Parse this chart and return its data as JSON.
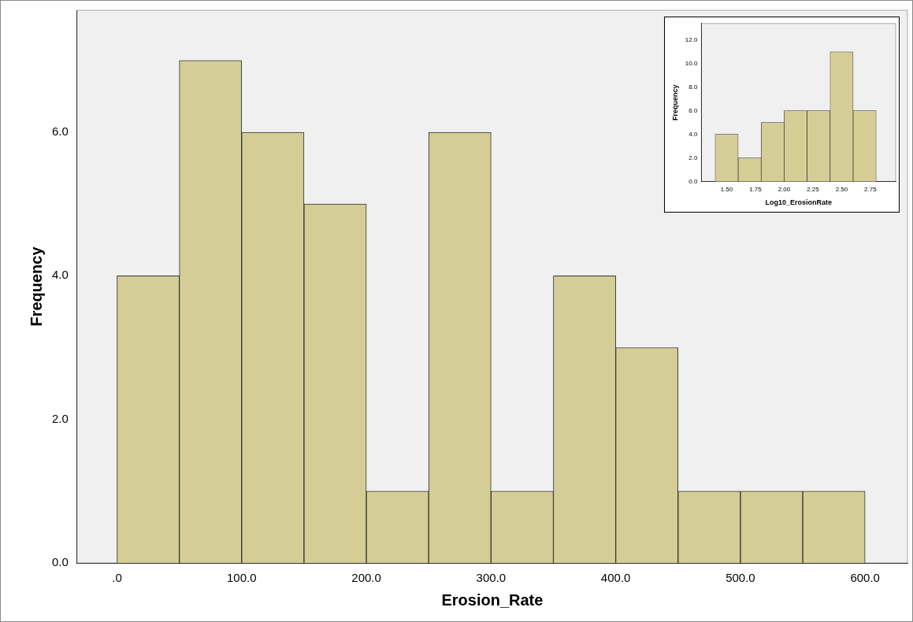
{
  "chart_data": [
    {
      "type": "histogram",
      "xlabel": "Erosion_Rate",
      "ylabel": "Frequency",
      "bins": [
        0,
        50,
        100,
        150,
        200,
        250,
        300,
        350,
        400,
        450,
        500,
        550,
        600
      ],
      "values": [
        4,
        7,
        6,
        5,
        1,
        6,
        1,
        4,
        3,
        1,
        1,
        1
      ],
      "color": "#d4ce96",
      "xlim": [
        -32,
        634
      ],
      "ylim": [
        0,
        7.7
      ],
      "xticks": [
        {
          "value": 0,
          "label": ".0"
        },
        {
          "value": 100,
          "label": "100.0"
        },
        {
          "value": 200,
          "label": "200.0"
        },
        {
          "value": 300,
          "label": "300.0"
        },
        {
          "value": 400,
          "label": "400.0"
        },
        {
          "value": 500,
          "label": "500.0"
        },
        {
          "value": 600,
          "label": "600.0"
        }
      ],
      "yticks": [
        {
          "value": 0,
          "label": "0.0"
        },
        {
          "value": 2,
          "label": "2.0"
        },
        {
          "value": 4,
          "label": "4.0"
        },
        {
          "value": 6,
          "label": "6.0"
        }
      ],
      "grid": false
    },
    {
      "type": "histogram",
      "xlabel": "Log10_ErosionRate",
      "ylabel": "Frequency",
      "bins": [
        1.4,
        1.6,
        1.8,
        2.0,
        2.2,
        2.4,
        2.6,
        2.8
      ],
      "values": [
        4,
        2,
        5,
        6,
        6,
        11,
        6
      ],
      "color": "#d4ce96",
      "xlim": [
        1.28,
        2.97
      ],
      "ylim": [
        0,
        13.4
      ],
      "xticks": [
        {
          "value": 1.5,
          "label": "1.50"
        },
        {
          "value": 1.75,
          "label": "1.75"
        },
        {
          "value": 2,
          "label": "2.00"
        },
        {
          "value": 2.25,
          "label": "2.25"
        },
        {
          "value": 2.5,
          "label": "2.50"
        },
        {
          "value": 2.75,
          "label": "2.75"
        }
      ],
      "yticks": [
        {
          "value": 0,
          "label": "0.0"
        },
        {
          "value": 2,
          "label": "2.0"
        },
        {
          "value": 4,
          "label": "4.0"
        },
        {
          "value": 6,
          "label": "6.0"
        },
        {
          "value": 8,
          "label": "8.0"
        },
        {
          "value": 10,
          "label": "10.0"
        },
        {
          "value": 12,
          "label": "12.0"
        }
      ],
      "grid": false
    }
  ]
}
